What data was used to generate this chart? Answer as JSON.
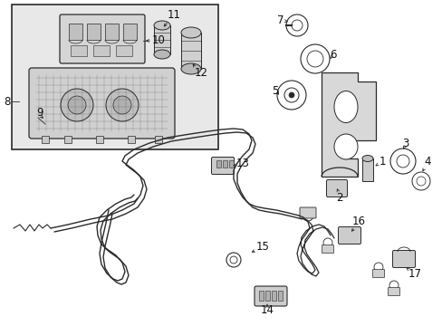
{
  "bg_color": "#ffffff",
  "line_color": "#2a2a2a",
  "label_color": "#111111",
  "inset_bg": "#e0e0e0",
  "figsize": [
    4.89,
    3.6
  ],
  "dpi": 100
}
